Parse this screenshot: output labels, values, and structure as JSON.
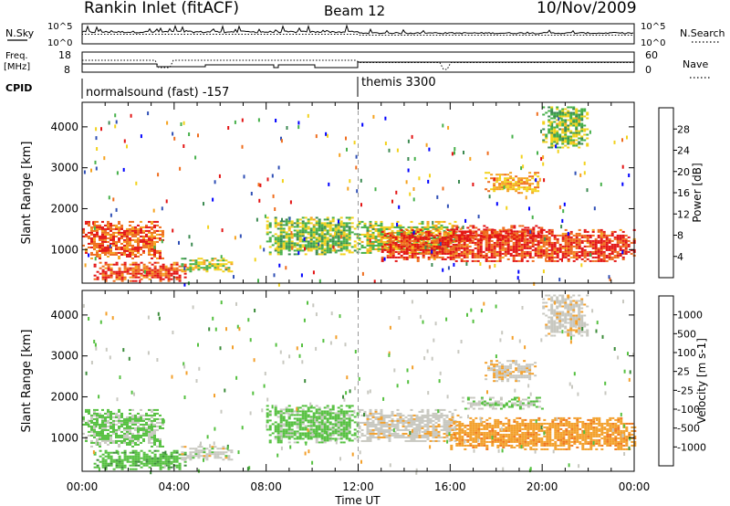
{
  "header": {
    "station": "Rankin Inlet (fitACF)",
    "beam": "Beam 12",
    "date": "10/Nov/2009"
  },
  "strip_panels": {
    "nsky_label": "N.Sky",
    "nsky_ticks": [
      "10^5",
      "10^0"
    ],
    "nsearch_label": "N.Search",
    "nsearch_ticks": [
      "10^5",
      "10^0"
    ],
    "freq_label_1": "Freq.",
    "freq_label_2": "[MHz]",
    "freq_ticks": [
      "18",
      "8"
    ],
    "nave_label": "Nave",
    "nave_ticks": [
      "60",
      "0"
    ],
    "cpid_label": "CPID",
    "cpid_segments": [
      {
        "label": "normalsound (fast) -157",
        "start_hour": 0,
        "end_hour": 12
      },
      {
        "label": "themis 3300",
        "start_hour": 12,
        "end_hour": 24
      }
    ]
  },
  "colors": {
    "power_scale": [
      "#0000ff",
      "#2f4fb5",
      "#3c8a52",
      "#46b04a",
      "#f2d21c",
      "#f5a21f",
      "#ef6d1d",
      "#e31414"
    ],
    "velocity_scale": [
      "#1a2fcb",
      "#2a6a7a",
      "#3c8c3a",
      "#55c040",
      "#c8c8c0",
      "#f3a02b",
      "#f0781c",
      "#e31414"
    ]
  },
  "chart_data": [
    {
      "type": "heatmap",
      "panel": "power",
      "ylabel": "Slant Range [km]",
      "xlabel": "Time UT",
      "x_ticks": [
        "00:00",
        "04:00",
        "08:00",
        "12:00",
        "16:00",
        "20:00",
        "00:00"
      ],
      "x_range_hours": [
        0,
        24
      ],
      "y_ticks": [
        1000,
        2000,
        3000,
        4000
      ],
      "ylim": [
        180,
        4600
      ],
      "colorbar_label": "Power [dB]",
      "colorbar_ticks": [
        "4",
        "8",
        "12",
        "16",
        "20",
        "24",
        "28"
      ],
      "zlim": [
        0,
        30
      ],
      "features": [
        {
          "t_start": 0.0,
          "t_end": 3.5,
          "range_low": 800,
          "range_high": 1700,
          "value": 25
        },
        {
          "t_start": 0.5,
          "t_end": 4.5,
          "range_low": 250,
          "range_high": 700,
          "value": 26
        },
        {
          "t_start": 4.3,
          "t_end": 6.5,
          "range_low": 450,
          "range_high": 800,
          "value": 16
        },
        {
          "t_start": 8.0,
          "t_end": 12.0,
          "range_low": 900,
          "range_high": 1800,
          "value": 14
        },
        {
          "t_start": 12.0,
          "t_end": 16.5,
          "range_low": 900,
          "range_high": 1700,
          "value": 16
        },
        {
          "t_start": 13.0,
          "t_end": 24.0,
          "range_low": 700,
          "range_high": 1500,
          "value": 27
        },
        {
          "t_start": 16.0,
          "t_end": 20.0,
          "range_low": 1200,
          "range_high": 1600,
          "value": 28
        },
        {
          "t_start": 17.5,
          "t_end": 19.8,
          "range_low": 2400,
          "range_high": 2900,
          "value": 20
        },
        {
          "t_start": 20.0,
          "t_end": 22.0,
          "range_low": 3500,
          "range_high": 4500,
          "value": 14
        }
      ]
    },
    {
      "type": "heatmap",
      "panel": "velocity",
      "ylabel": "Slant Range [km]",
      "xlabel": "Time UT",
      "x_ticks": [
        "00:00",
        "04:00",
        "08:00",
        "12:00",
        "16:00",
        "20:00",
        "00:00"
      ],
      "x_range_hours": [
        0,
        24
      ],
      "y_ticks": [
        1000,
        2000,
        3000,
        4000
      ],
      "ylim": [
        180,
        4600
      ],
      "colorbar_label": "Velocity [m s-1]",
      "colorbar_ticks": [
        "1000",
        "500",
        "100",
        "25",
        "-25",
        "-100",
        "-500",
        "-1000"
      ],
      "zlim": [
        -1000,
        1000
      ],
      "features": [
        {
          "t_start": 0.0,
          "t_end": 3.5,
          "range_low": 800,
          "range_high": 1700,
          "value": 50
        },
        {
          "t_start": 0.5,
          "t_end": 4.5,
          "range_low": 250,
          "range_high": 700,
          "value": 150
        },
        {
          "t_start": 4.3,
          "t_end": 6.5,
          "range_low": 450,
          "range_high": 800,
          "value": -120
        },
        {
          "t_start": 8.0,
          "t_end": 12.0,
          "range_low": 900,
          "range_high": 1800,
          "value": 80
        },
        {
          "t_start": 12.0,
          "t_end": 16.5,
          "range_low": 900,
          "range_high": 1700,
          "value": -150
        },
        {
          "t_start": 16.0,
          "t_end": 24.0,
          "range_low": 700,
          "range_high": 1500,
          "value": -400
        },
        {
          "t_start": 16.5,
          "t_end": 20.0,
          "range_low": 1700,
          "range_high": 2000,
          "value": 0
        },
        {
          "t_start": 17.5,
          "t_end": 19.8,
          "range_low": 2400,
          "range_high": 2900,
          "value": -200
        },
        {
          "t_start": 20.0,
          "t_end": 22.0,
          "range_low": 3500,
          "range_high": 4500,
          "value": -150
        }
      ]
    }
  ]
}
